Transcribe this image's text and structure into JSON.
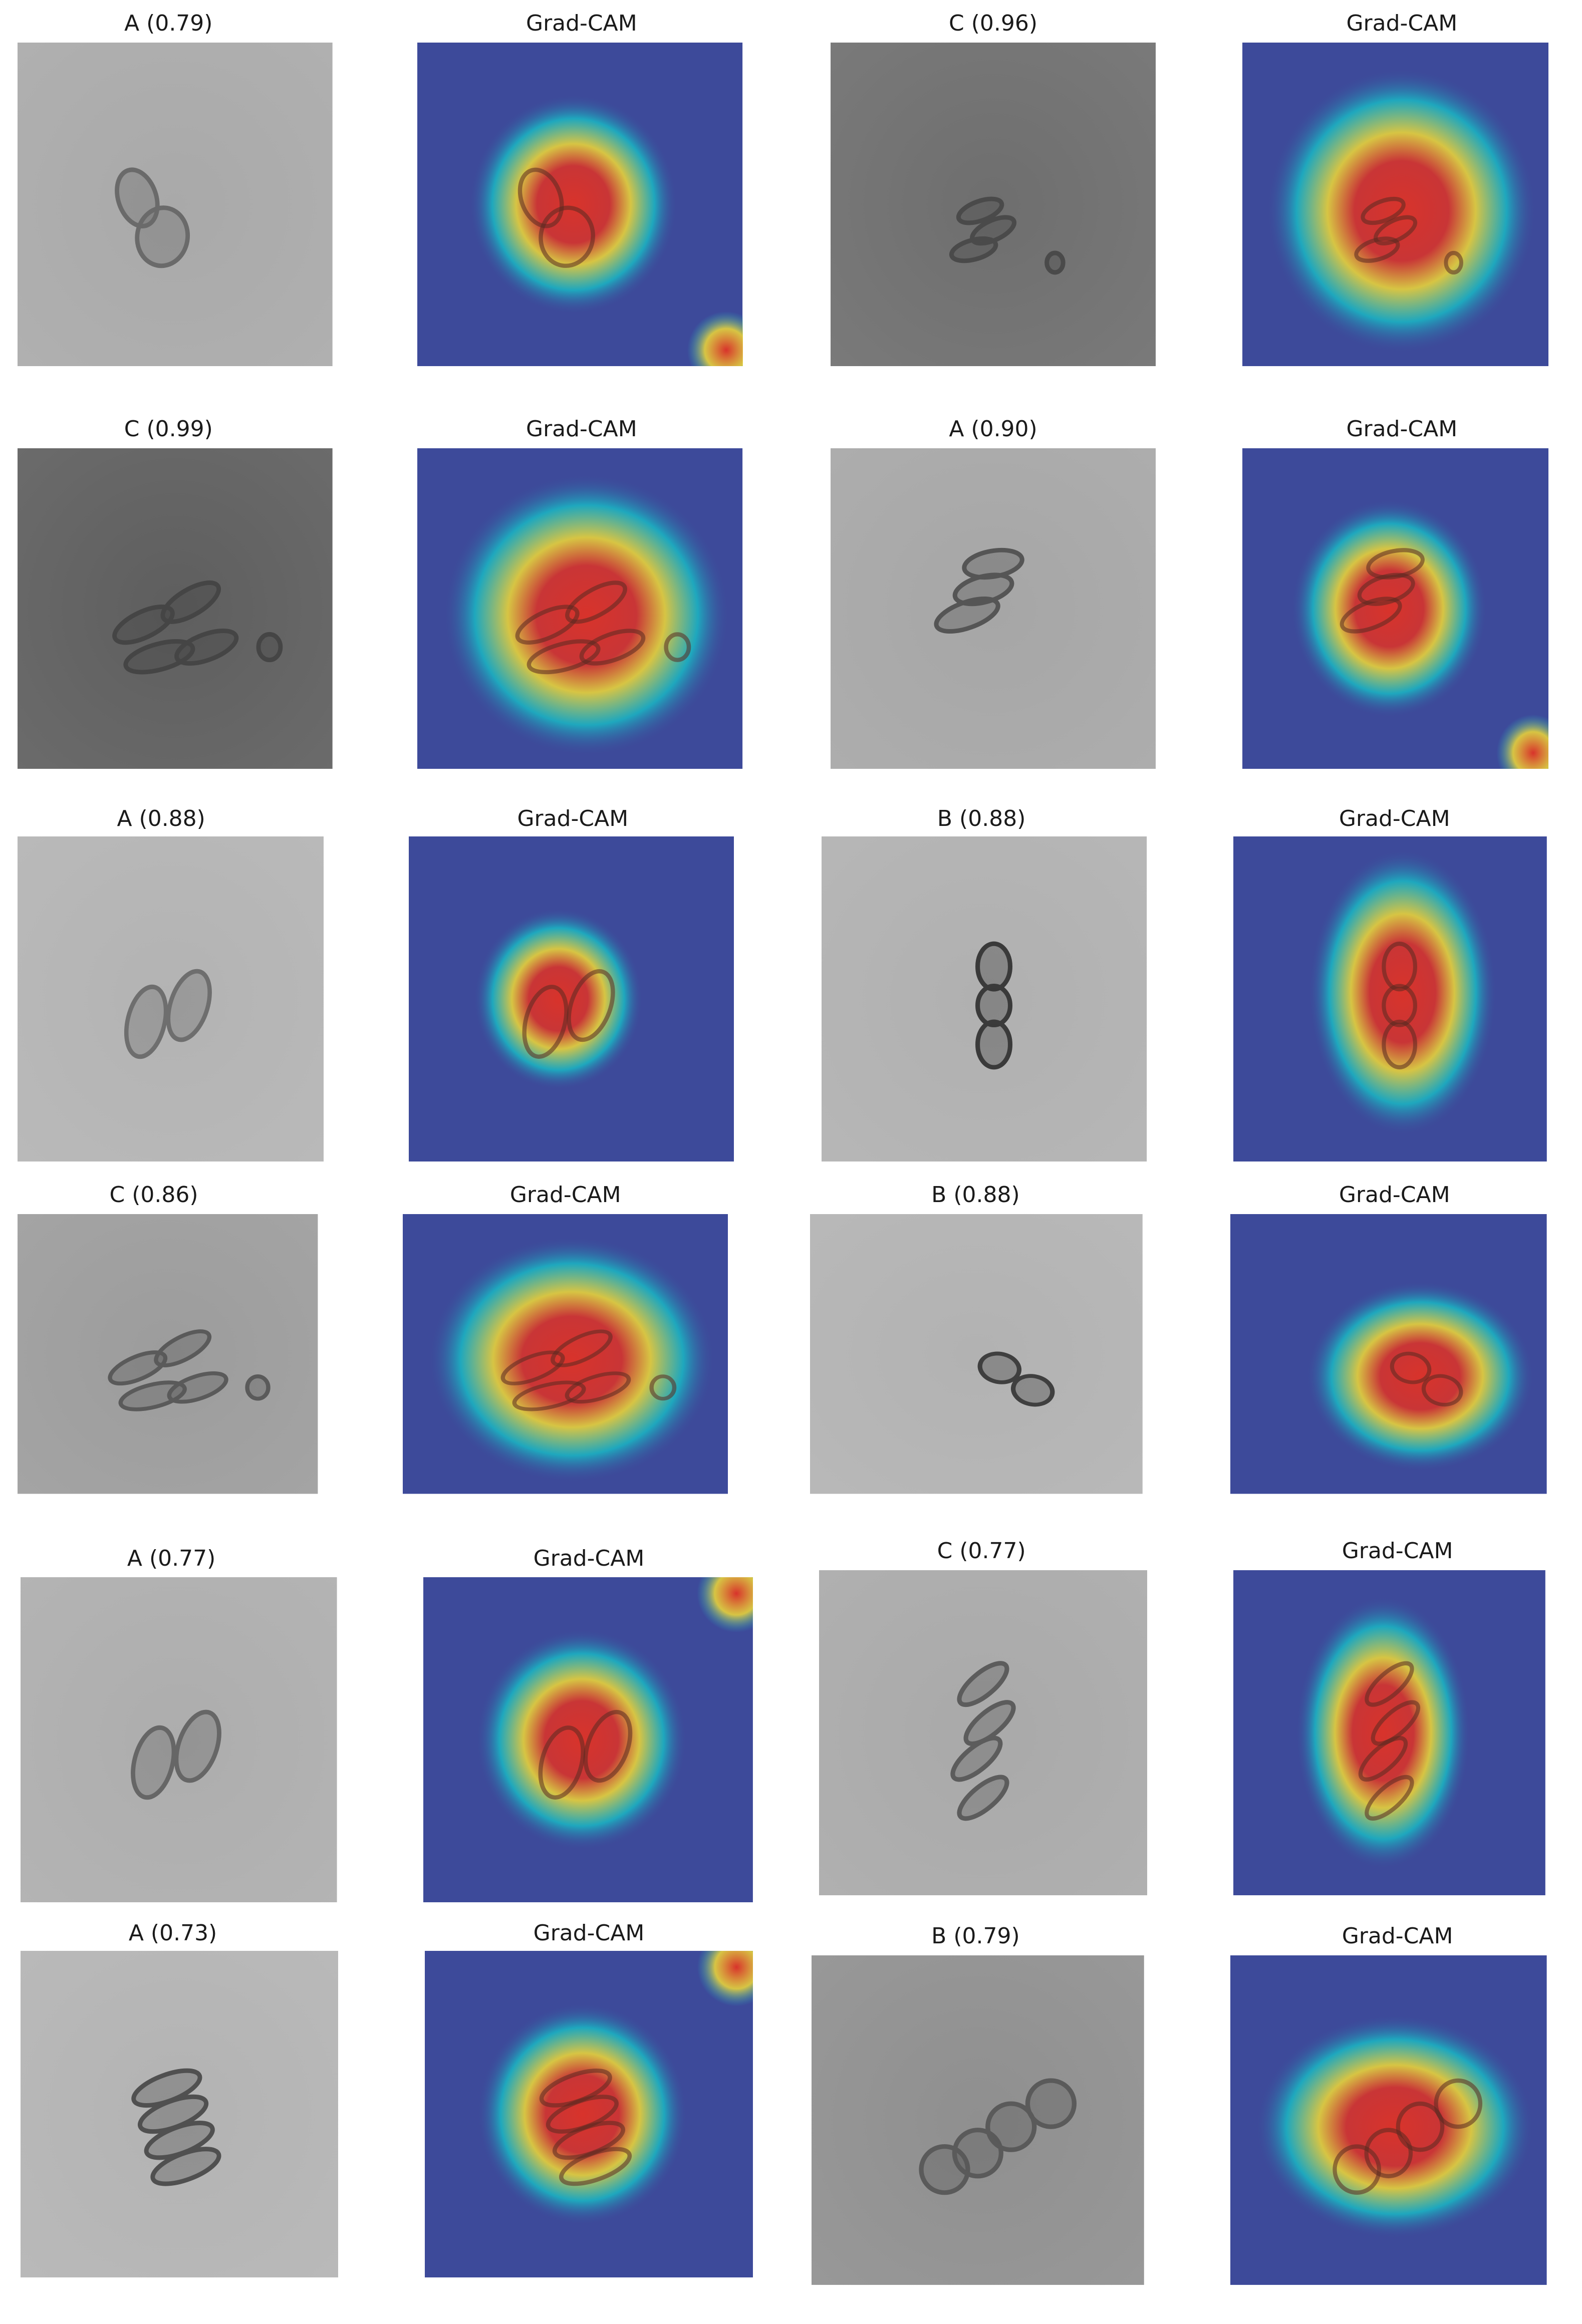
{
  "panels": [
    {
      "title": "A (0.79)",
      "kind": "micro",
      "bg": "#a9a9a9",
      "cells": "pair",
      "cell_tone": "#6a6a6a"
    },
    {
      "title": "Grad-CAM",
      "kind": "cam",
      "shape": "blob",
      "hotspot_corner": "bottom-right"
    },
    {
      "title": "C (0.96)",
      "kind": "micro",
      "bg": "#6e6e6e",
      "cells": "cluster-small",
      "cell_tone": "#4a4a4a"
    },
    {
      "title": "Grad-CAM",
      "kind": "cam",
      "shape": "wide"
    },
    {
      "title": "C (0.99)",
      "kind": "micro",
      "bg": "#5e5e5e",
      "cells": "cluster",
      "cell_tone": "#454545"
    },
    {
      "title": "Grad-CAM",
      "kind": "cam",
      "shape": "wide"
    },
    {
      "title": "A (0.90)",
      "kind": "micro",
      "bg": "#a6a6a6",
      "cells": "stack-angled",
      "cell_tone": "#555555"
    },
    {
      "title": "Grad-CAM",
      "kind": "cam",
      "shape": "blob",
      "hotspot_corner": "bottom-right"
    },
    {
      "title": "A (0.88)",
      "kind": "micro",
      "bg": "#b3b3b3",
      "cells": "pair-flagella",
      "cell_tone": "#6e6e6e"
    },
    {
      "title": "Grad-CAM",
      "kind": "cam",
      "shape": "small"
    },
    {
      "title": "B (0.88)",
      "kind": "micro",
      "bg": "#b0b0b0",
      "cells": "chain-vertical",
      "cell_tone": "#3a3a3a"
    },
    {
      "title": "Grad-CAM",
      "kind": "cam",
      "shape": "vertical"
    },
    {
      "title": "C (0.86)",
      "kind": "micro",
      "bg": "#9c9c9c",
      "cells": "cluster",
      "cell_tone": "#5a5a5a"
    },
    {
      "title": "Grad-CAM",
      "kind": "cam",
      "shape": "wide"
    },
    {
      "title": "B (0.88)",
      "kind": "micro",
      "bg": "#b2b2b2",
      "cells": "pair-diagonal",
      "cell_tone": "#3f3f3f"
    },
    {
      "title": "Grad-CAM",
      "kind": "cam",
      "shape": "offset"
    },
    {
      "title": "A (0.77)",
      "kind": "micro",
      "bg": "#adadad",
      "cells": "pair-flagella",
      "cell_tone": "#666666"
    },
    {
      "title": "Grad-CAM",
      "kind": "cam",
      "shape": "blob",
      "hotspot_corner": "top-right"
    },
    {
      "title": "C (0.77)",
      "kind": "micro",
      "bg": "#a9a9a9",
      "cells": "cluster-tall",
      "cell_tone": "#5c5c5c"
    },
    {
      "title": "Grad-CAM",
      "kind": "cam",
      "shape": "tall"
    },
    {
      "title": "A (0.73)",
      "kind": "micro",
      "bg": "#b3b3b3",
      "cells": "stack-four",
      "cell_tone": "#505050"
    },
    {
      "title": "Grad-CAM",
      "kind": "cam",
      "shape": "blob",
      "hotspot_corner": "top-right"
    },
    {
      "title": "B (0.79)",
      "kind": "micro",
      "bg": "#8f8f8f",
      "cells": "chain-curved",
      "cell_tone": "#5a5a5a"
    },
    {
      "title": "Grad-CAM",
      "kind": "cam",
      "shape": "diag"
    }
  ],
  "colors": {
    "cam_background": "#3d4a9a",
    "cam_cold": "#2a3ab8",
    "cam_cool": "#19b8c4",
    "cam_warm": "#e8d23a",
    "cam_hot": "#d8332b"
  }
}
